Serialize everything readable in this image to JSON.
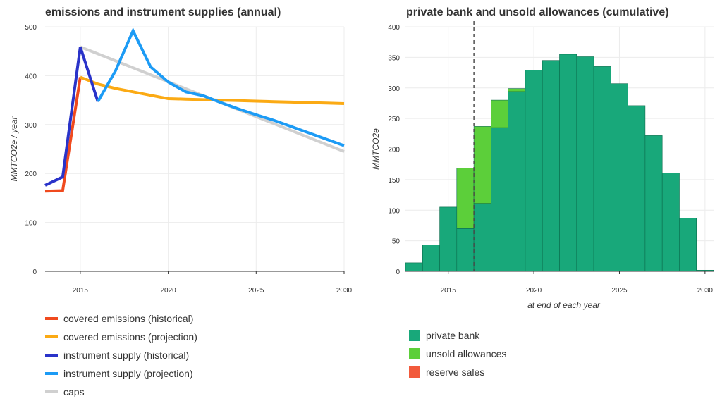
{
  "chart_data": [
    {
      "type": "line",
      "title": "emissions and instrument supplies (annual)",
      "xlabel": "",
      "ylabel": "MMTCO2e / year",
      "xlim": [
        2013,
        2030
      ],
      "ylim": [
        0,
        500
      ],
      "xticks": [
        2015,
        2020,
        2025,
        2030
      ],
      "yticks": [
        0,
        100,
        200,
        300,
        400,
        500
      ],
      "grid": true,
      "legend_position": "bottom-left",
      "series": [
        {
          "name": "caps",
          "color": "#d0d0d0",
          "x": [
            2015,
            2030
          ],
          "y": [
            459,
            245
          ]
        },
        {
          "name": "covered emissions (historical)",
          "color": "#f04a1e",
          "x": [
            2013,
            2014,
            2015
          ],
          "y": [
            164,
            165,
            397
          ]
        },
        {
          "name": "covered emissions (projection)",
          "color": "#fbaa14",
          "x": [
            2015,
            2016,
            2017,
            2018,
            2019,
            2020,
            2021,
            2022,
            2023,
            2024,
            2025,
            2026,
            2027,
            2028,
            2029,
            2030
          ],
          "y": [
            397,
            383,
            374,
            367,
            360,
            353,
            352,
            351,
            350,
            349,
            348,
            347,
            346,
            345,
            344,
            343
          ]
        },
        {
          "name": "instrument supply (historical)",
          "color": "#2a33c9",
          "x": [
            2013,
            2014,
            2015,
            2016
          ],
          "y": [
            176,
            193,
            459,
            347
          ]
        },
        {
          "name": "instrument supply (projection)",
          "color": "#1c9bf5",
          "x": [
            2016,
            2017,
            2018,
            2019,
            2020,
            2021,
            2022,
            2023,
            2024,
            2025,
            2026,
            2027,
            2028,
            2029,
            2030
          ],
          "y": [
            347,
            410,
            492,
            418,
            387,
            367,
            359,
            345,
            332,
            320,
            309,
            296,
            283,
            270,
            257
          ]
        }
      ]
    },
    {
      "type": "bar",
      "title": "private bank and unsold allowances (cumulative)",
      "xlabel": "at end of each year",
      "ylabel": "MMTCO2e",
      "xlim": [
        2012.5,
        2030.5
      ],
      "ylim": [
        0,
        400
      ],
      "xticks": [
        2015,
        2020,
        2025,
        2030
      ],
      "yticks": [
        0,
        50,
        100,
        150,
        200,
        250,
        300,
        350,
        400
      ],
      "grid": true,
      "stacked": true,
      "legend_position": "bottom-left",
      "marker_line": {
        "x": 2016.5,
        "style": "dashed"
      },
      "categories": [
        2013,
        2014,
        2015,
        2016,
        2017,
        2018,
        2019,
        2020,
        2021,
        2022,
        2023,
        2024,
        2025,
        2026,
        2027,
        2028,
        2029,
        2030
      ],
      "series": [
        {
          "name": "private bank",
          "color": "#18a87a",
          "values": [
            14,
            43,
            105,
            70,
            111,
            235,
            294,
            329,
            345,
            355,
            351,
            335,
            307,
            271,
            222,
            161,
            87,
            2
          ]
        },
        {
          "name": "unsold allowances",
          "color": "#5ccf3a",
          "values": [
            0,
            0,
            0,
            99,
            126,
            45,
            5,
            0,
            0,
            0,
            0,
            0,
            0,
            0,
            0,
            0,
            0,
            0
          ]
        },
        {
          "name": "reserve sales",
          "color": "#f25a3c",
          "values": [
            0,
            0,
            0,
            0,
            0,
            0,
            0,
            0,
            0,
            0,
            0,
            0,
            0,
            0,
            0,
            0,
            0,
            0
          ]
        }
      ]
    }
  ]
}
